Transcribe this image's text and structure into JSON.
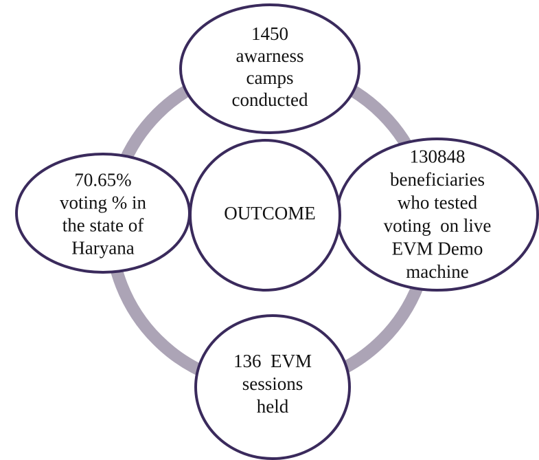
{
  "nodes": [
    {
      "label": "OUTCOME"
    },
    {
      "lines": [
        "1450",
        "awarness",
        "camps",
        "conducted"
      ]
    },
    {
      "lines": [
        "130848",
        "beneficiaries",
        "who tested",
        "voting  on live",
        "EVM Demo",
        "machine"
      ]
    },
    {
      "lines": [
        "136  EVM",
        "sessions",
        "held"
      ]
    },
    {
      "lines": [
        "70.65%",
        "voting % in",
        "the state of",
        "Haryana"
      ]
    }
  ]
}
